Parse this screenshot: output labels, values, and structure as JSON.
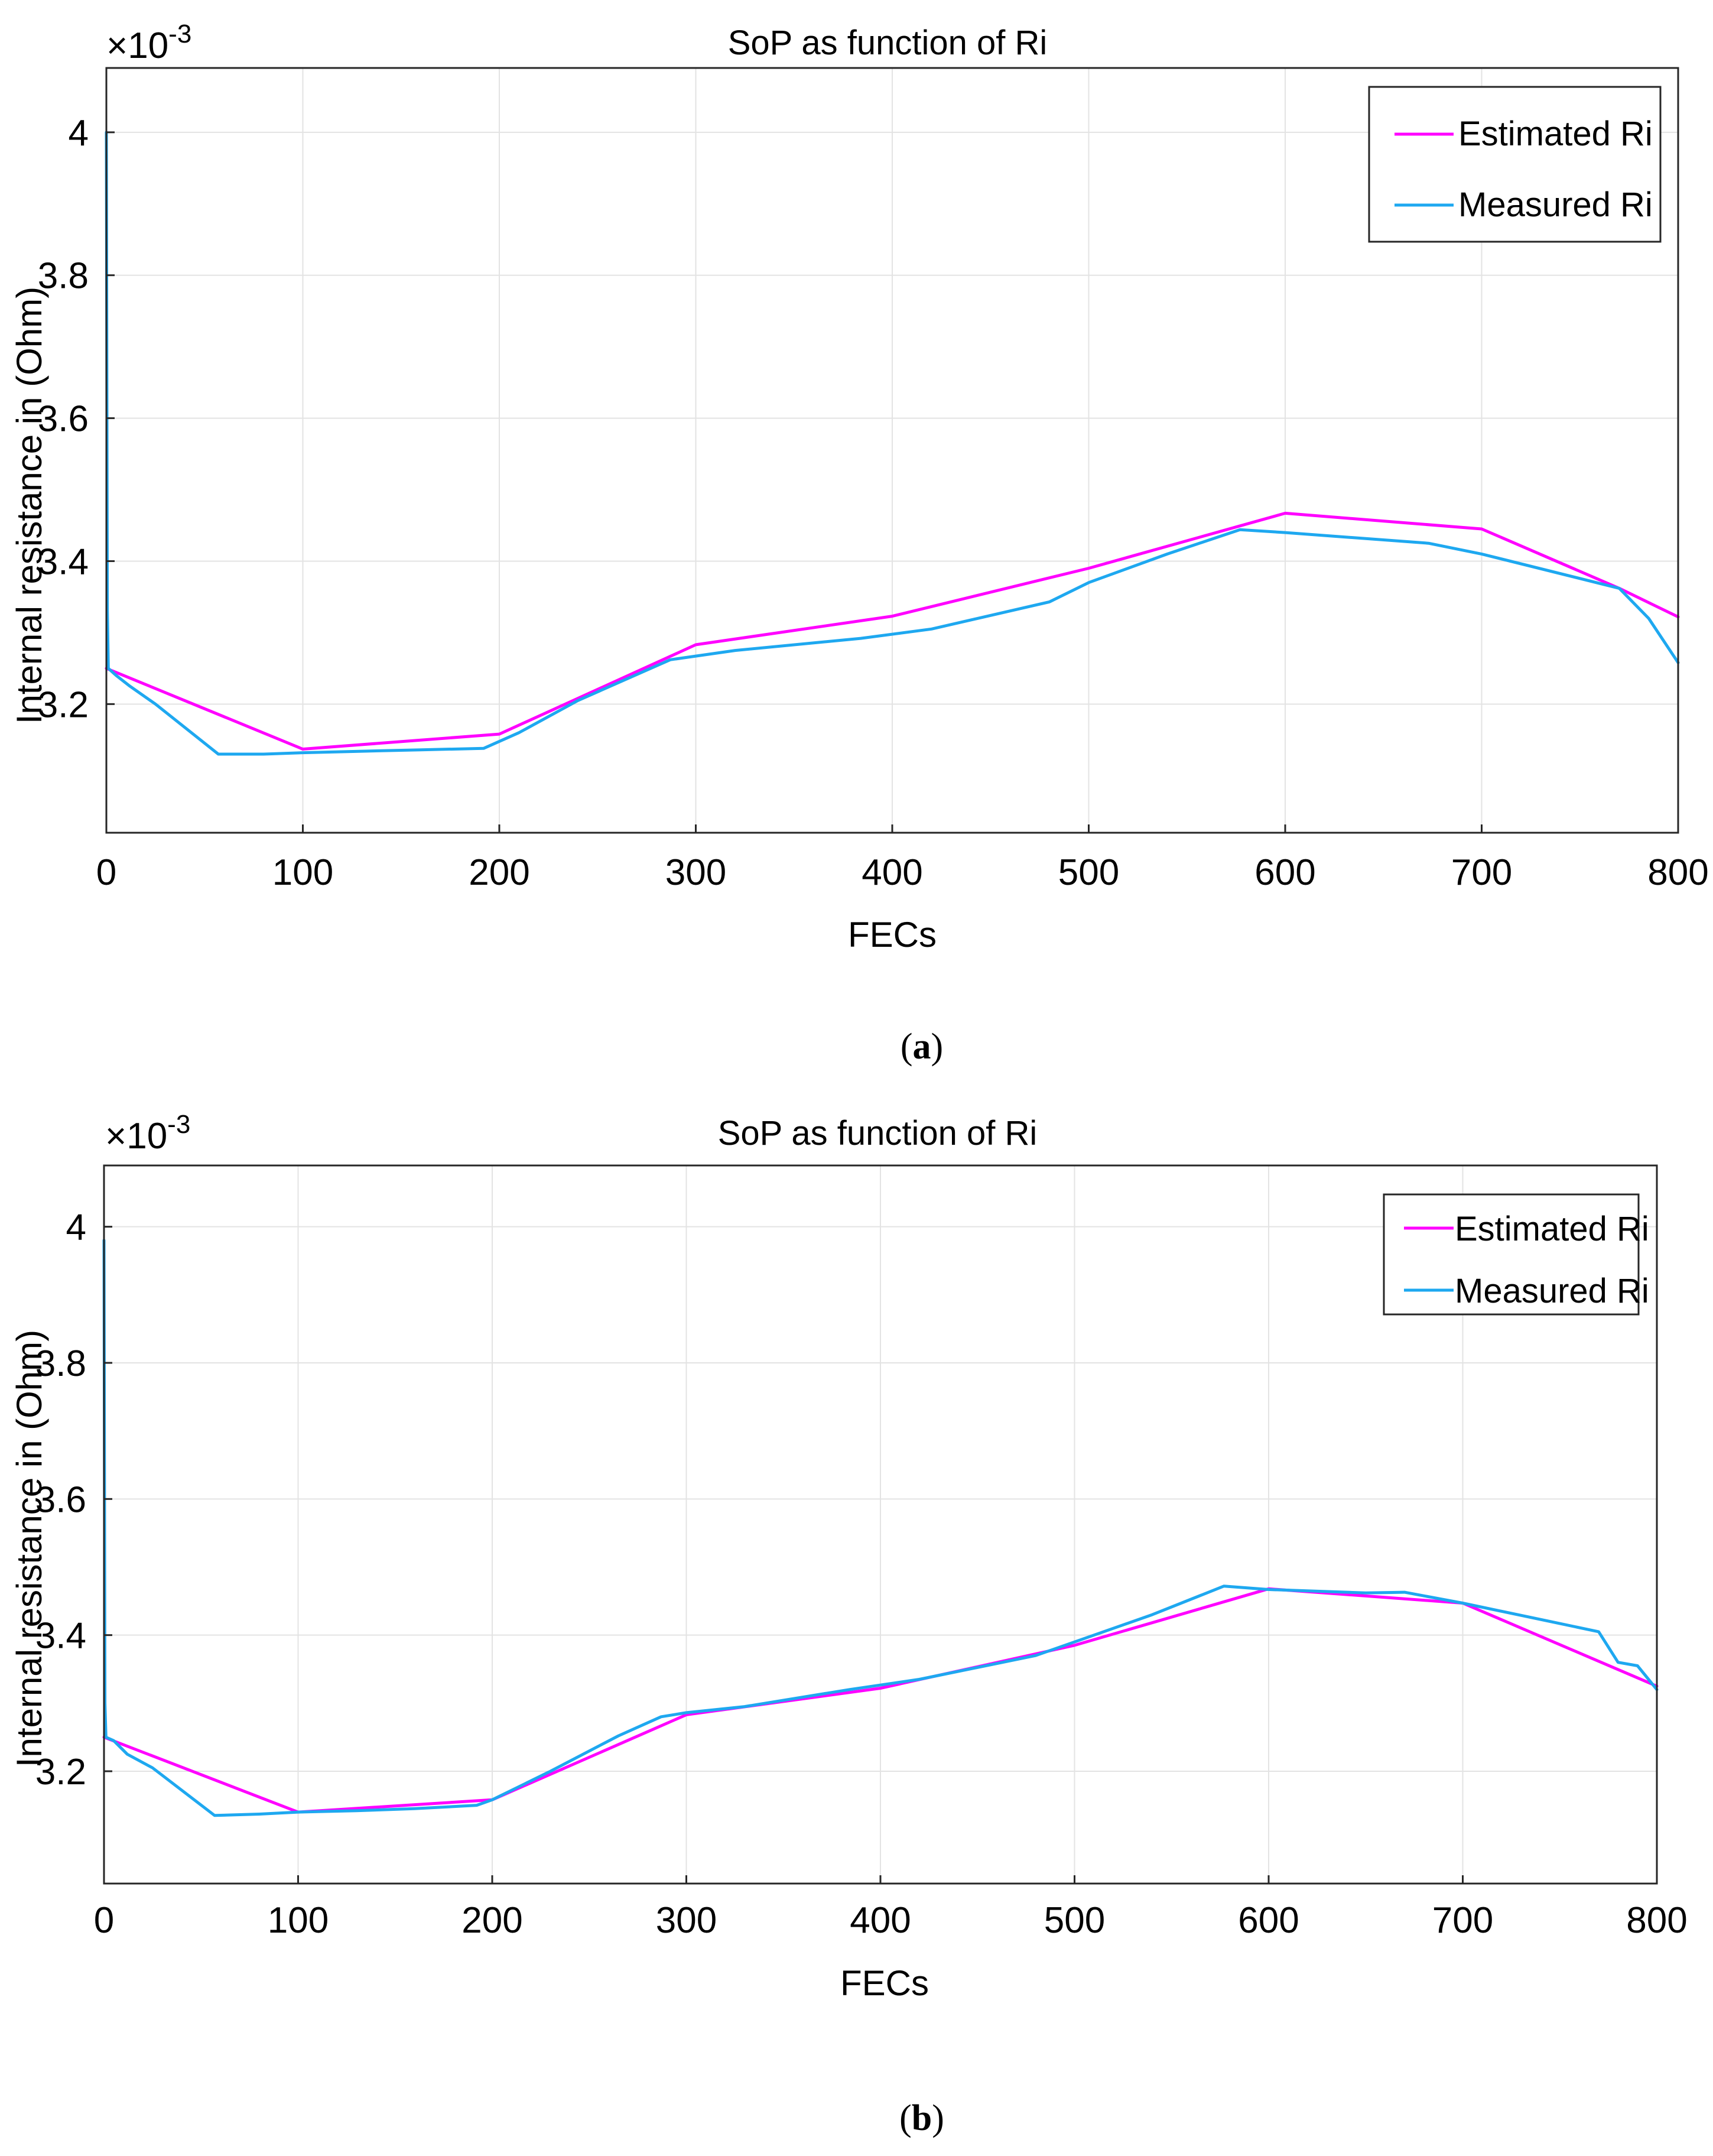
{
  "chart_data": [
    {
      "type": "line",
      "panel_label": "(a)",
      "panel_letter": "a",
      "title": "SoP as function of Ri",
      "xlabel": "FECs",
      "ylabel": "Internal resistance in (Ohm)",
      "y_exponent_label": "×10",
      "y_exponent_power": "-3",
      "xlim": [
        0,
        800
      ],
      "ylim": [
        3.02,
        4.09
      ],
      "xticks": [
        0,
        100,
        200,
        300,
        400,
        500,
        600,
        700,
        800
      ],
      "yticks": [
        3.2,
        3.4,
        3.6,
        3.8,
        4.0
      ],
      "ytick_labels": [
        "3.2",
        "3.4",
        "3.6",
        "3.8",
        "4"
      ],
      "grid": true,
      "legend_position": "top-right",
      "series": [
        {
          "name": "Estimated Ri",
          "color": "#ff00ff",
          "x": [
            0,
            100,
            200,
            300,
            400,
            500,
            600,
            700,
            770,
            800
          ],
          "y": [
            3.25,
            3.137,
            3.158,
            3.283,
            3.323,
            3.39,
            3.467,
            3.445,
            3.362,
            3.322
          ]
        },
        {
          "name": "Measured Ri",
          "color": "#1ea8f0",
          "x": [
            0,
            0.5,
            1,
            5,
            12,
            25,
            57,
            80,
            100,
            130,
            160,
            192,
            210,
            240,
            287,
            320,
            384,
            420,
            480,
            500,
            540,
            577,
            600,
            673,
            700,
            770,
            785,
            800
          ],
          "y": [
            4.0,
            3.33,
            3.25,
            3.24,
            3.225,
            3.2,
            3.13,
            3.13,
            3.132,
            3.134,
            3.136,
            3.138,
            3.16,
            3.205,
            3.262,
            3.275,
            3.292,
            3.305,
            3.343,
            3.37,
            3.41,
            3.444,
            3.44,
            3.425,
            3.41,
            3.362,
            3.32,
            3.258
          ]
        }
      ]
    },
    {
      "type": "line",
      "panel_label": "(b)",
      "panel_letter": "b",
      "title": "SoP as function of Ri",
      "xlabel": "FECs",
      "ylabel": "Internal resistance in (Ohm)",
      "y_exponent_label": "×10",
      "y_exponent_power": "-3",
      "xlim": [
        0,
        800
      ],
      "ylim": [
        3.035,
        4.09
      ],
      "xticks": [
        0,
        100,
        200,
        300,
        400,
        500,
        600,
        700,
        800
      ],
      "yticks": [
        3.2,
        3.4,
        3.6,
        3.8,
        4.0
      ],
      "ytick_labels": [
        "3.2",
        "3.4",
        "3.6",
        "3.8",
        "4"
      ],
      "grid": true,
      "legend_position": "top-right",
      "series": [
        {
          "name": "Estimated Ri",
          "color": "#ff00ff",
          "x": [
            0,
            100,
            200,
            300,
            400,
            500,
            600,
            700,
            800
          ],
          "y": [
            3.25,
            3.14,
            3.158,
            3.283,
            3.322,
            3.385,
            3.468,
            3.447,
            3.325
          ]
        },
        {
          "name": "Measured Ri",
          "color": "#1ea8f0",
          "x": [
            0,
            0.5,
            1,
            5,
            12,
            25,
            57,
            80,
            100,
            130,
            160,
            192,
            200,
            230,
            265,
            287,
            300,
            330,
            384,
            420,
            480,
            500,
            540,
            577,
            600,
            650,
            670,
            700,
            745,
            770,
            780,
            790,
            800
          ],
          "y": [
            3.98,
            3.3,
            3.25,
            3.245,
            3.225,
            3.205,
            3.135,
            3.137,
            3.14,
            3.142,
            3.145,
            3.15,
            3.158,
            3.2,
            3.252,
            3.28,
            3.286,
            3.295,
            3.32,
            3.335,
            3.37,
            3.39,
            3.43,
            3.472,
            3.467,
            3.462,
            3.463,
            3.447,
            3.42,
            3.405,
            3.36,
            3.355,
            3.32
          ]
        }
      ]
    }
  ]
}
